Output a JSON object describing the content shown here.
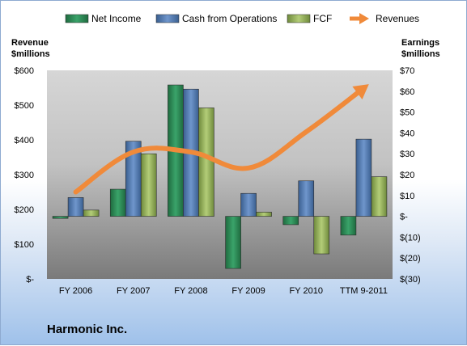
{
  "chart_data": {
    "type": "bar",
    "title": "Harmonic Inc.",
    "categories": [
      "FY 2006",
      "FY 2007",
      "FY 2008",
      "FY 2009",
      "FY 2010",
      "TTM 9-2011"
    ],
    "series": [
      {
        "name": "Net Income",
        "kind": "bar",
        "axis": "right",
        "color": "#2e8b57",
        "values": [
          -1,
          13,
          63,
          -25,
          -4,
          -9
        ]
      },
      {
        "name": "Cash from Operations",
        "kind": "bar",
        "axis": "right",
        "color": "#4f81bd",
        "values": [
          9,
          36,
          61,
          11,
          17,
          37
        ]
      },
      {
        "name": "FCF",
        "kind": "bar",
        "axis": "right",
        "color": "#9bbb59",
        "values": [
          3,
          30,
          52,
          2,
          -18,
          19
        ]
      },
      {
        "name": "Revenues",
        "kind": "line",
        "axis": "left",
        "color": "#f08a3a",
        "values": [
          250,
          365,
          365,
          319,
          423,
          549
        ]
      }
    ],
    "left_axis": {
      "label_line1": "Revenue",
      "label_line2": "$millions",
      "min": 0,
      "max": 600,
      "ticks": [
        600,
        500,
        400,
        300,
        200,
        100,
        0
      ],
      "tick_labels": [
        "$600",
        "$500",
        "$400",
        "$300",
        "$200",
        "$100",
        "$-"
      ]
    },
    "right_axis": {
      "label_line1": "Earnings",
      "label_line2": "$millions",
      "min": -30,
      "max": 70,
      "ticks": [
        70,
        60,
        50,
        40,
        30,
        20,
        10,
        0,
        -10,
        -20,
        -30
      ],
      "tick_labels": [
        "$70",
        "$60",
        "$50",
        "$40",
        "$30",
        "$20",
        "$10",
        "$-",
        "$(10)",
        "$(20)",
        "$(30)"
      ]
    },
    "grid": false,
    "legend_position": "top"
  },
  "colors": {
    "plot_top": "#d4d4d4",
    "plot_bottom": "#7f7f7f",
    "revenue_arrow": "#f08a3a"
  }
}
